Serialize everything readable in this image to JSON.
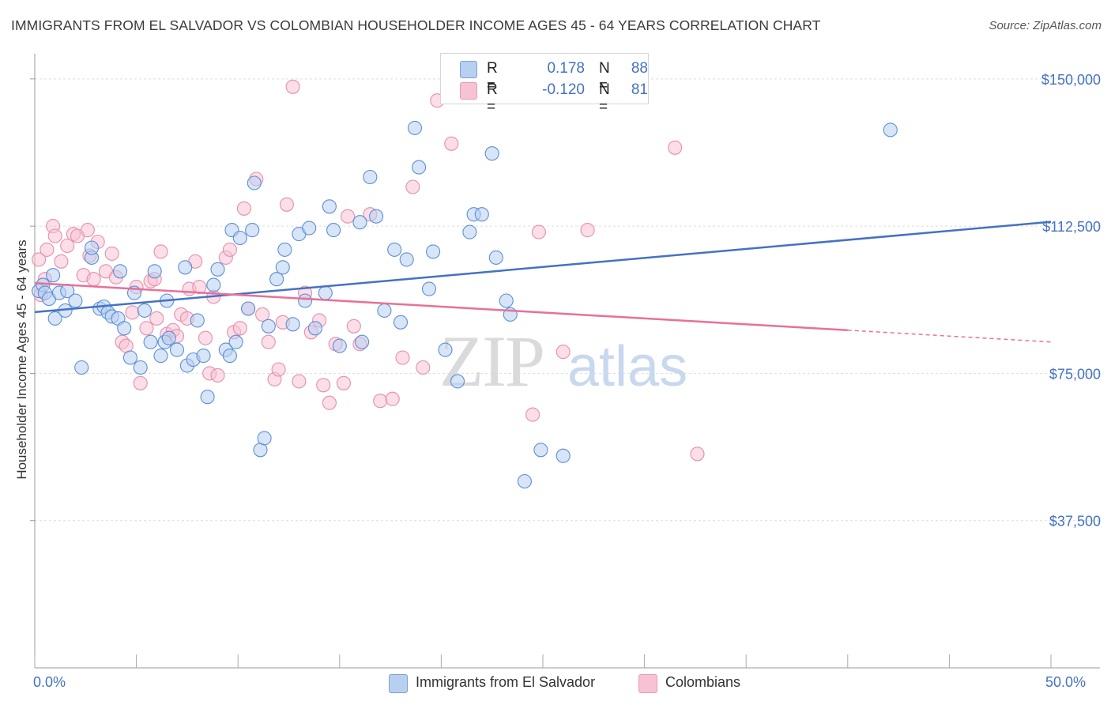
{
  "title": "IMMIGRANTS FROM EL SALVADOR VS COLOMBIAN HOUSEHOLDER INCOME AGES 45 - 64 YEARS CORRELATION CHART",
  "source": "Source: ZipAtlas.com",
  "watermark": "ZIPatlas",
  "legend": {
    "series1": {
      "r_label": "R =",
      "r_value": "0.178",
      "n_label": "N =",
      "n_value": "88"
    },
    "series2": {
      "r_label": "R =",
      "r_value": "-0.120",
      "n_label": "N =",
      "n_value": "81"
    }
  },
  "bottom_legend": {
    "series1": "Immigrants from El Salvador",
    "series2": "Colombians"
  },
  "x_axis": {
    "min_label": "0.0%",
    "max_label": "50.0%"
  },
  "colors": {
    "blue": "#4472c4",
    "blue_fill": "#b8d0f0",
    "pink": "#e8709a",
    "pink_fill": "#f7c3d4",
    "accent_text": "#4472c4"
  },
  "chart_data": {
    "type": "scatter",
    "title": "IMMIGRANTS FROM EL SALVADOR VS COLOMBIAN HOUSEHOLDER INCOME AGES 45 - 64 YEARS CORRELATION CHART",
    "xlabel": "",
    "ylabel": "Householder Income Ages 45 - 64 years",
    "xlim": [
      0,
      50
    ],
    "ylim": [
      0,
      155000
    ],
    "y_ticks": [
      37500,
      75000,
      112500,
      150000
    ],
    "y_tick_labels": [
      "$37,500",
      "$75,000",
      "$112,500",
      "$150,000"
    ],
    "x_tick_labels": [
      "0.0%",
      "50.0%"
    ],
    "grid": true,
    "series": [
      {
        "name": "Immigrants from El Salvador",
        "color": "#4472c4",
        "trend": {
          "x": [
            0,
            50
          ],
          "y": [
            90600,
            113600
          ]
        },
        "points": [
          [
            0.2,
            96000
          ],
          [
            0.4,
            97500
          ],
          [
            0.5,
            95500
          ],
          [
            0.7,
            94000
          ],
          [
            0.9,
            100000
          ],
          [
            1.0,
            89000
          ],
          [
            1.2,
            95500
          ],
          [
            1.5,
            91000
          ],
          [
            1.6,
            96000
          ],
          [
            2.0,
            93500
          ],
          [
            2.3,
            76500
          ],
          [
            2.8,
            104500
          ],
          [
            2.8,
            107000
          ],
          [
            3.2,
            91500
          ],
          [
            3.4,
            92000
          ],
          [
            3.6,
            90500
          ],
          [
            3.8,
            89500
          ],
          [
            4.1,
            89000
          ],
          [
            4.2,
            101000
          ],
          [
            4.4,
            86500
          ],
          [
            4.7,
            79000
          ],
          [
            4.9,
            95500
          ],
          [
            5.2,
            76500
          ],
          [
            5.4,
            91000
          ],
          [
            5.7,
            83000
          ],
          [
            5.9,
            101000
          ],
          [
            6.2,
            79500
          ],
          [
            6.4,
            83000
          ],
          [
            6.5,
            93500
          ],
          [
            6.6,
            84000
          ],
          [
            7.0,
            81000
          ],
          [
            7.4,
            102000
          ],
          [
            7.5,
            77000
          ],
          [
            7.8,
            78500
          ],
          [
            8.0,
            88500
          ],
          [
            8.3,
            79500
          ],
          [
            8.5,
            69000
          ],
          [
            8.8,
            97500
          ],
          [
            9.0,
            101500
          ],
          [
            9.4,
            81000
          ],
          [
            9.6,
            79500
          ],
          [
            9.7,
            111500
          ],
          [
            9.9,
            83000
          ],
          [
            10.1,
            109500
          ],
          [
            10.5,
            91500
          ],
          [
            10.7,
            111500
          ],
          [
            10.8,
            123500
          ],
          [
            11.1,
            55500
          ],
          [
            11.3,
            58500
          ],
          [
            11.5,
            87000
          ],
          [
            11.9,
            99000
          ],
          [
            12.2,
            102000
          ],
          [
            12.3,
            106500
          ],
          [
            12.7,
            87500
          ],
          [
            13.0,
            110500
          ],
          [
            13.3,
            93500
          ],
          [
            13.5,
            112000
          ],
          [
            13.8,
            86500
          ],
          [
            14.3,
            95500
          ],
          [
            14.5,
            117500
          ],
          [
            14.7,
            111500
          ],
          [
            15.0,
            82000
          ],
          [
            16.0,
            113500
          ],
          [
            16.1,
            83000
          ],
          [
            16.5,
            125000
          ],
          [
            16.8,
            115000
          ],
          [
            17.2,
            91000
          ],
          [
            17.7,
            106500
          ],
          [
            18.0,
            88000
          ],
          [
            18.3,
            104000
          ],
          [
            18.7,
            137500
          ],
          [
            18.9,
            127500
          ],
          [
            19.4,
            96500
          ],
          [
            19.6,
            106000
          ],
          [
            20.2,
            81000
          ],
          [
            20.8,
            73000
          ],
          [
            21.4,
            111000
          ],
          [
            21.6,
            115500
          ],
          [
            22.0,
            115500
          ],
          [
            22.5,
            131000
          ],
          [
            22.7,
            104500
          ],
          [
            23.2,
            93500
          ],
          [
            23.4,
            90000
          ],
          [
            24.1,
            47500
          ],
          [
            24.9,
            55500
          ],
          [
            26.0,
            54000
          ],
          [
            42.1,
            137000
          ]
        ]
      },
      {
        "name": "Colombians",
        "color": "#e8709a",
        "trend": {
          "x": [
            0,
            40
          ],
          "y": [
            98000,
            86000
          ],
          "dashed_to": [
            50,
            83000
          ]
        },
        "points": [
          [
            0.2,
            104000
          ],
          [
            0.3,
            95000
          ],
          [
            0.5,
            99000
          ],
          [
            0.6,
            106500
          ],
          [
            0.9,
            112500
          ],
          [
            1.0,
            110000
          ],
          [
            1.3,
            103500
          ],
          [
            1.6,
            107500
          ],
          [
            1.9,
            110500
          ],
          [
            2.1,
            110000
          ],
          [
            2.4,
            100000
          ],
          [
            2.6,
            111500
          ],
          [
            2.7,
            105000
          ],
          [
            2.9,
            99000
          ],
          [
            3.1,
            108500
          ],
          [
            3.5,
            101000
          ],
          [
            3.8,
            105500
          ],
          [
            4.0,
            99500
          ],
          [
            4.3,
            83000
          ],
          [
            4.5,
            82000
          ],
          [
            4.8,
            90500
          ],
          [
            5.0,
            97000
          ],
          [
            5.2,
            72500
          ],
          [
            5.5,
            86500
          ],
          [
            5.7,
            98500
          ],
          [
            5.9,
            99000
          ],
          [
            6.0,
            89000
          ],
          [
            6.2,
            106000
          ],
          [
            6.5,
            85000
          ],
          [
            6.8,
            86000
          ],
          [
            7.0,
            84500
          ],
          [
            7.2,
            90000
          ],
          [
            7.5,
            89000
          ],
          [
            7.6,
            96500
          ],
          [
            7.9,
            103500
          ],
          [
            8.1,
            97000
          ],
          [
            8.4,
            84000
          ],
          [
            8.6,
            75000
          ],
          [
            8.8,
            94500
          ],
          [
            9.0,
            74500
          ],
          [
            9.4,
            104500
          ],
          [
            9.6,
            106500
          ],
          [
            9.8,
            85500
          ],
          [
            10.1,
            86500
          ],
          [
            10.3,
            117000
          ],
          [
            10.5,
            91500
          ],
          [
            10.9,
            124500
          ],
          [
            11.2,
            90000
          ],
          [
            11.5,
            83000
          ],
          [
            11.8,
            73500
          ],
          [
            12.0,
            76000
          ],
          [
            12.2,
            88000
          ],
          [
            12.4,
            118000
          ],
          [
            12.7,
            148000
          ],
          [
            13.0,
            73000
          ],
          [
            13.3,
            95500
          ],
          [
            13.6,
            85500
          ],
          [
            14.0,
            88500
          ],
          [
            14.2,
            72000
          ],
          [
            14.5,
            67500
          ],
          [
            14.8,
            82500
          ],
          [
            15.2,
            72500
          ],
          [
            15.4,
            115000
          ],
          [
            15.7,
            87000
          ],
          [
            16.0,
            82500
          ],
          [
            16.5,
            115500
          ],
          [
            17.0,
            68000
          ],
          [
            17.6,
            68500
          ],
          [
            18.1,
            79000
          ],
          [
            18.6,
            122500
          ],
          [
            19.1,
            76500
          ],
          [
            19.8,
            144500
          ],
          [
            20.5,
            133500
          ],
          [
            24.5,
            64500
          ],
          [
            24.8,
            111000
          ],
          [
            26.0,
            80500
          ],
          [
            27.2,
            111500
          ],
          [
            31.5,
            132500
          ],
          [
            32.6,
            54500
          ]
        ]
      }
    ]
  }
}
